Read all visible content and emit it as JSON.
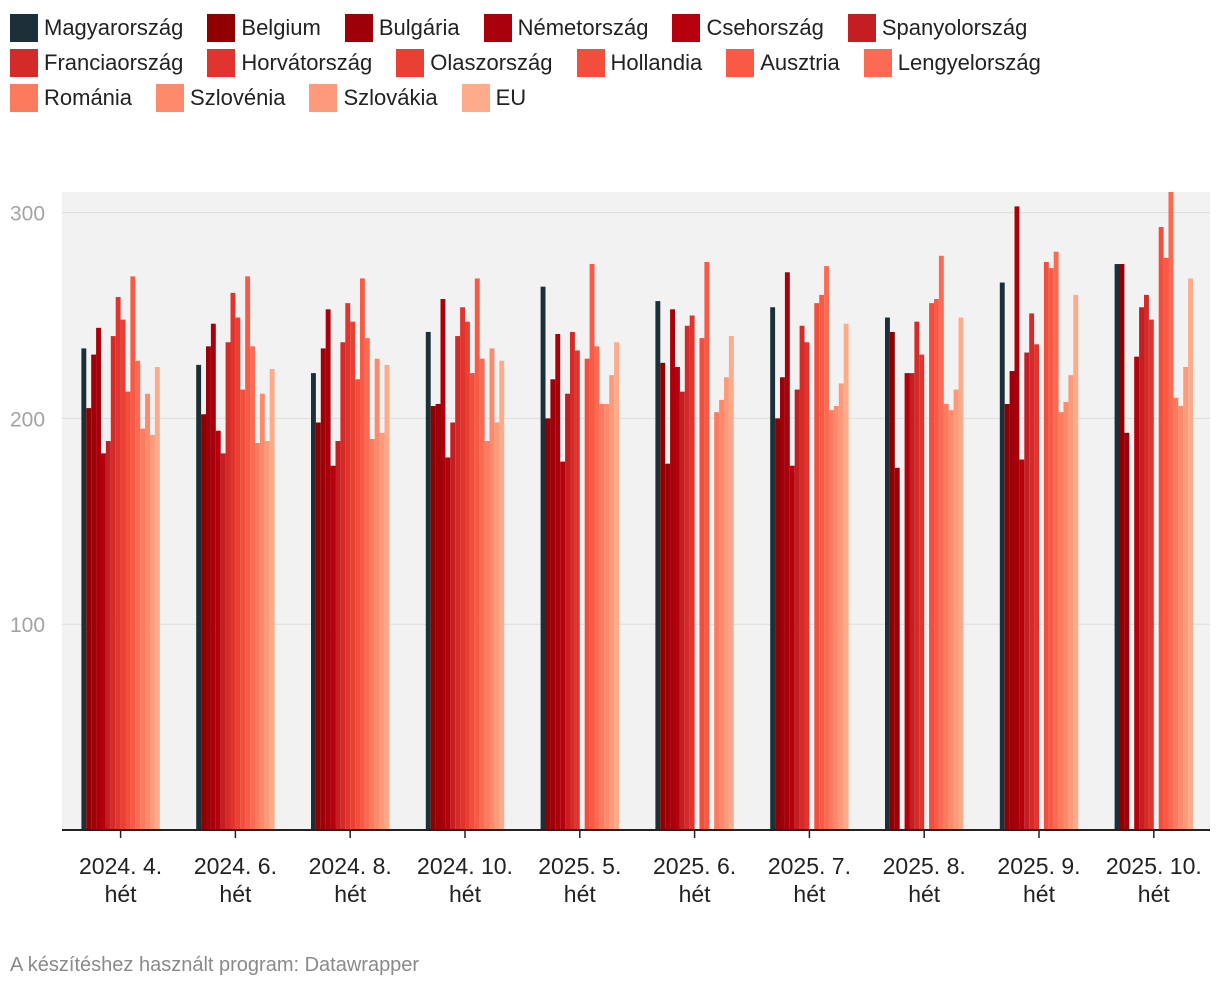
{
  "chart_data": {
    "type": "bar",
    "title": "",
    "xlabel": "",
    "ylabel": "",
    "ylim": [
      0,
      310
    ],
    "yticks": [
      100,
      200,
      300
    ],
    "grid": true,
    "legend_position": "top",
    "categories": [
      [
        "2024. 4.",
        "hét"
      ],
      [
        "2024. 6.",
        "hét"
      ],
      [
        "2024. 8.",
        "hét"
      ],
      [
        "2024. 10.",
        "hét"
      ],
      [
        "2025. 5.",
        "hét"
      ],
      [
        "2025. 6.",
        "hét"
      ],
      [
        "2025. 7.",
        "hét"
      ],
      [
        "2025. 8.",
        "hét"
      ],
      [
        "2025. 9.",
        "hét"
      ],
      [
        "2025. 10.",
        "hét"
      ]
    ],
    "series": [
      {
        "name": "Magyarország",
        "color": "#1b3038",
        "values": [
          234,
          226,
          222,
          242,
          264,
          257,
          254,
          249,
          266,
          275
        ]
      },
      {
        "name": "Belgium",
        "color": "#900000",
        "values": [
          205,
          202,
          198,
          206,
          200,
          227,
          200,
          242,
          207,
          275
        ]
      },
      {
        "name": "Bulgária",
        "color": "#9d0008",
        "values": [
          231,
          235,
          234,
          207,
          219,
          178,
          220,
          176,
          223,
          193
        ]
      },
      {
        "name": "Németország",
        "color": "#a9000b",
        "values": [
          244,
          246,
          253,
          258,
          241,
          253,
          271,
          null,
          303,
          null
        ]
      },
      {
        "name": "Csehország",
        "color": "#b6000e",
        "values": [
          183,
          194,
          177,
          181,
          179,
          225,
          177,
          222,
          180,
          230
        ]
      },
      {
        "name": "Spanyolország",
        "color": "#c41d22",
        "values": [
          189,
          183,
          189,
          198,
          212,
          213,
          214,
          222,
          232,
          254
        ]
      },
      {
        "name": "Franciaország",
        "color": "#d52b28",
        "values": [
          240,
          237,
          237,
          240,
          242,
          245,
          245,
          247,
          251,
          260
        ]
      },
      {
        "name": "Horvátország",
        "color": "#e1342f",
        "values": [
          259,
          261,
          256,
          254,
          233,
          250,
          237,
          231,
          236,
          248
        ]
      },
      {
        "name": "Olaszország",
        "color": "#ea4033",
        "values": [
          248,
          249,
          247,
          247,
          null,
          null,
          null,
          null,
          null,
          null
        ]
      },
      {
        "name": "Hollandia",
        "color": "#f14e3b",
        "values": [
          213,
          214,
          219,
          222,
          229,
          239,
          256,
          256,
          276,
          293
        ]
      },
      {
        "name": "Ausztria",
        "color": "#f85a45",
        "values": [
          269,
          269,
          268,
          268,
          275,
          276,
          260,
          258,
          273,
          278
        ]
      },
      {
        "name": "Lengyelország",
        "color": "#fb6a52",
        "values": [
          228,
          235,
          239,
          229,
          235,
          null,
          274,
          279,
          281,
          310
        ]
      },
      {
        "name": "Románia",
        "color": "#fc7a5e",
        "values": [
          195,
          188,
          190,
          189,
          207,
          203,
          204,
          207,
          203,
          210
        ]
      },
      {
        "name": "Szlovénia",
        "color": "#fd8a6b",
        "values": [
          212,
          212,
          229,
          234,
          207,
          209,
          206,
          204,
          208,
          206
        ]
      },
      {
        "name": "Szlovákia",
        "color": "#fd9a79",
        "values": [
          192,
          189,
          193,
          198,
          221,
          220,
          217,
          214,
          221,
          225
        ]
      },
      {
        "name": "EU",
        "color": "#fdab8a",
        "values": [
          225,
          224,
          226,
          228,
          237,
          240,
          246,
          249,
          260,
          268
        ]
      }
    ]
  },
  "footer": {
    "text": "A készítéshez használt program: Datawrapper"
  }
}
